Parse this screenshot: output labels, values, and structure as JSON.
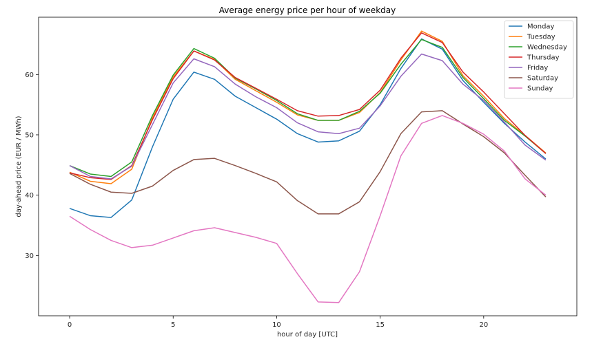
{
  "chart_data": {
    "type": "line",
    "title": "Average energy price per hour of weekday",
    "xlabel": "hour of day [UTC]",
    "ylabel": "day-ahead price (EUR / MWh)",
    "xlim": [
      -1.5,
      24.5
    ],
    "ylim": [
      20,
      69.5
    ],
    "xticks": [
      0,
      5,
      10,
      15,
      20
    ],
    "yticks": [
      30,
      40,
      50,
      60
    ],
    "grid": false,
    "legend_position": "top-right",
    "x": [
      0,
      1,
      2,
      3,
      4,
      5,
      6,
      7,
      8,
      9,
      10,
      11,
      12,
      13,
      14,
      15,
      16,
      17,
      18,
      19,
      20,
      21,
      22,
      23
    ],
    "series": [
      {
        "name": "Monday",
        "color": "#1f77b4",
        "values": [
          37.8,
          36.6,
          36.3,
          39.2,
          48.0,
          55.9,
          60.4,
          59.2,
          56.4,
          54.5,
          52.6,
          50.2,
          48.8,
          49.0,
          50.6,
          55.0,
          61.0,
          65.9,
          64.2,
          59.0,
          55.4,
          51.9,
          48.8,
          46.0
        ]
      },
      {
        "name": "Tuesday",
        "color": "#ff7f0e",
        "values": [
          43.8,
          42.3,
          41.9,
          44.3,
          52.8,
          59.6,
          63.9,
          62.5,
          59.2,
          57.3,
          55.4,
          53.3,
          52.4,
          52.4,
          53.7,
          57.0,
          62.4,
          67.2,
          65.5,
          59.8,
          56.4,
          52.7,
          49.9,
          47.0
        ]
      },
      {
        "name": "Wednesday",
        "color": "#2ca02c",
        "values": [
          44.9,
          43.5,
          43.1,
          45.5,
          53.2,
          59.9,
          64.3,
          62.7,
          59.4,
          57.6,
          55.7,
          53.5,
          52.4,
          52.4,
          53.9,
          56.9,
          61.7,
          65.8,
          64.5,
          59.5,
          56.0,
          52.4,
          49.8,
          46.9
        ]
      },
      {
        "name": "Thursday",
        "color": "#d62728",
        "values": [
          43.7,
          42.9,
          42.6,
          44.9,
          52.5,
          59.3,
          63.9,
          62.4,
          59.5,
          57.7,
          55.9,
          54.0,
          53.1,
          53.2,
          54.2,
          57.4,
          62.7,
          66.9,
          65.3,
          60.4,
          57.1,
          53.5,
          49.9,
          46.9
        ]
      },
      {
        "name": "Friday",
        "color": "#9467bd",
        "values": [
          44.9,
          43.1,
          42.7,
          44.8,
          51.7,
          58.6,
          62.6,
          61.3,
          58.4,
          56.3,
          54.5,
          52.0,
          50.5,
          50.2,
          51.1,
          54.8,
          59.7,
          63.4,
          62.3,
          58.4,
          55.7,
          52.1,
          48.3,
          45.8
        ]
      },
      {
        "name": "Saturday",
        "color": "#8c564b",
        "values": [
          43.6,
          41.8,
          40.5,
          40.3,
          41.5,
          44.1,
          45.9,
          46.1,
          44.9,
          43.6,
          42.2,
          39.1,
          36.9,
          36.9,
          38.9,
          43.9,
          50.2,
          53.8,
          54.0,
          51.8,
          49.7,
          47.0,
          43.3,
          39.7
        ]
      },
      {
        "name": "Sunday",
        "color": "#e377c2",
        "values": [
          36.5,
          34.3,
          32.5,
          31.3,
          31.7,
          32.9,
          34.1,
          34.6,
          33.8,
          33.0,
          32.0,
          27.0,
          22.3,
          22.2,
          27.3,
          36.6,
          46.5,
          51.9,
          53.2,
          51.9,
          50.1,
          47.3,
          42.7,
          40.0
        ]
      }
    ]
  }
}
